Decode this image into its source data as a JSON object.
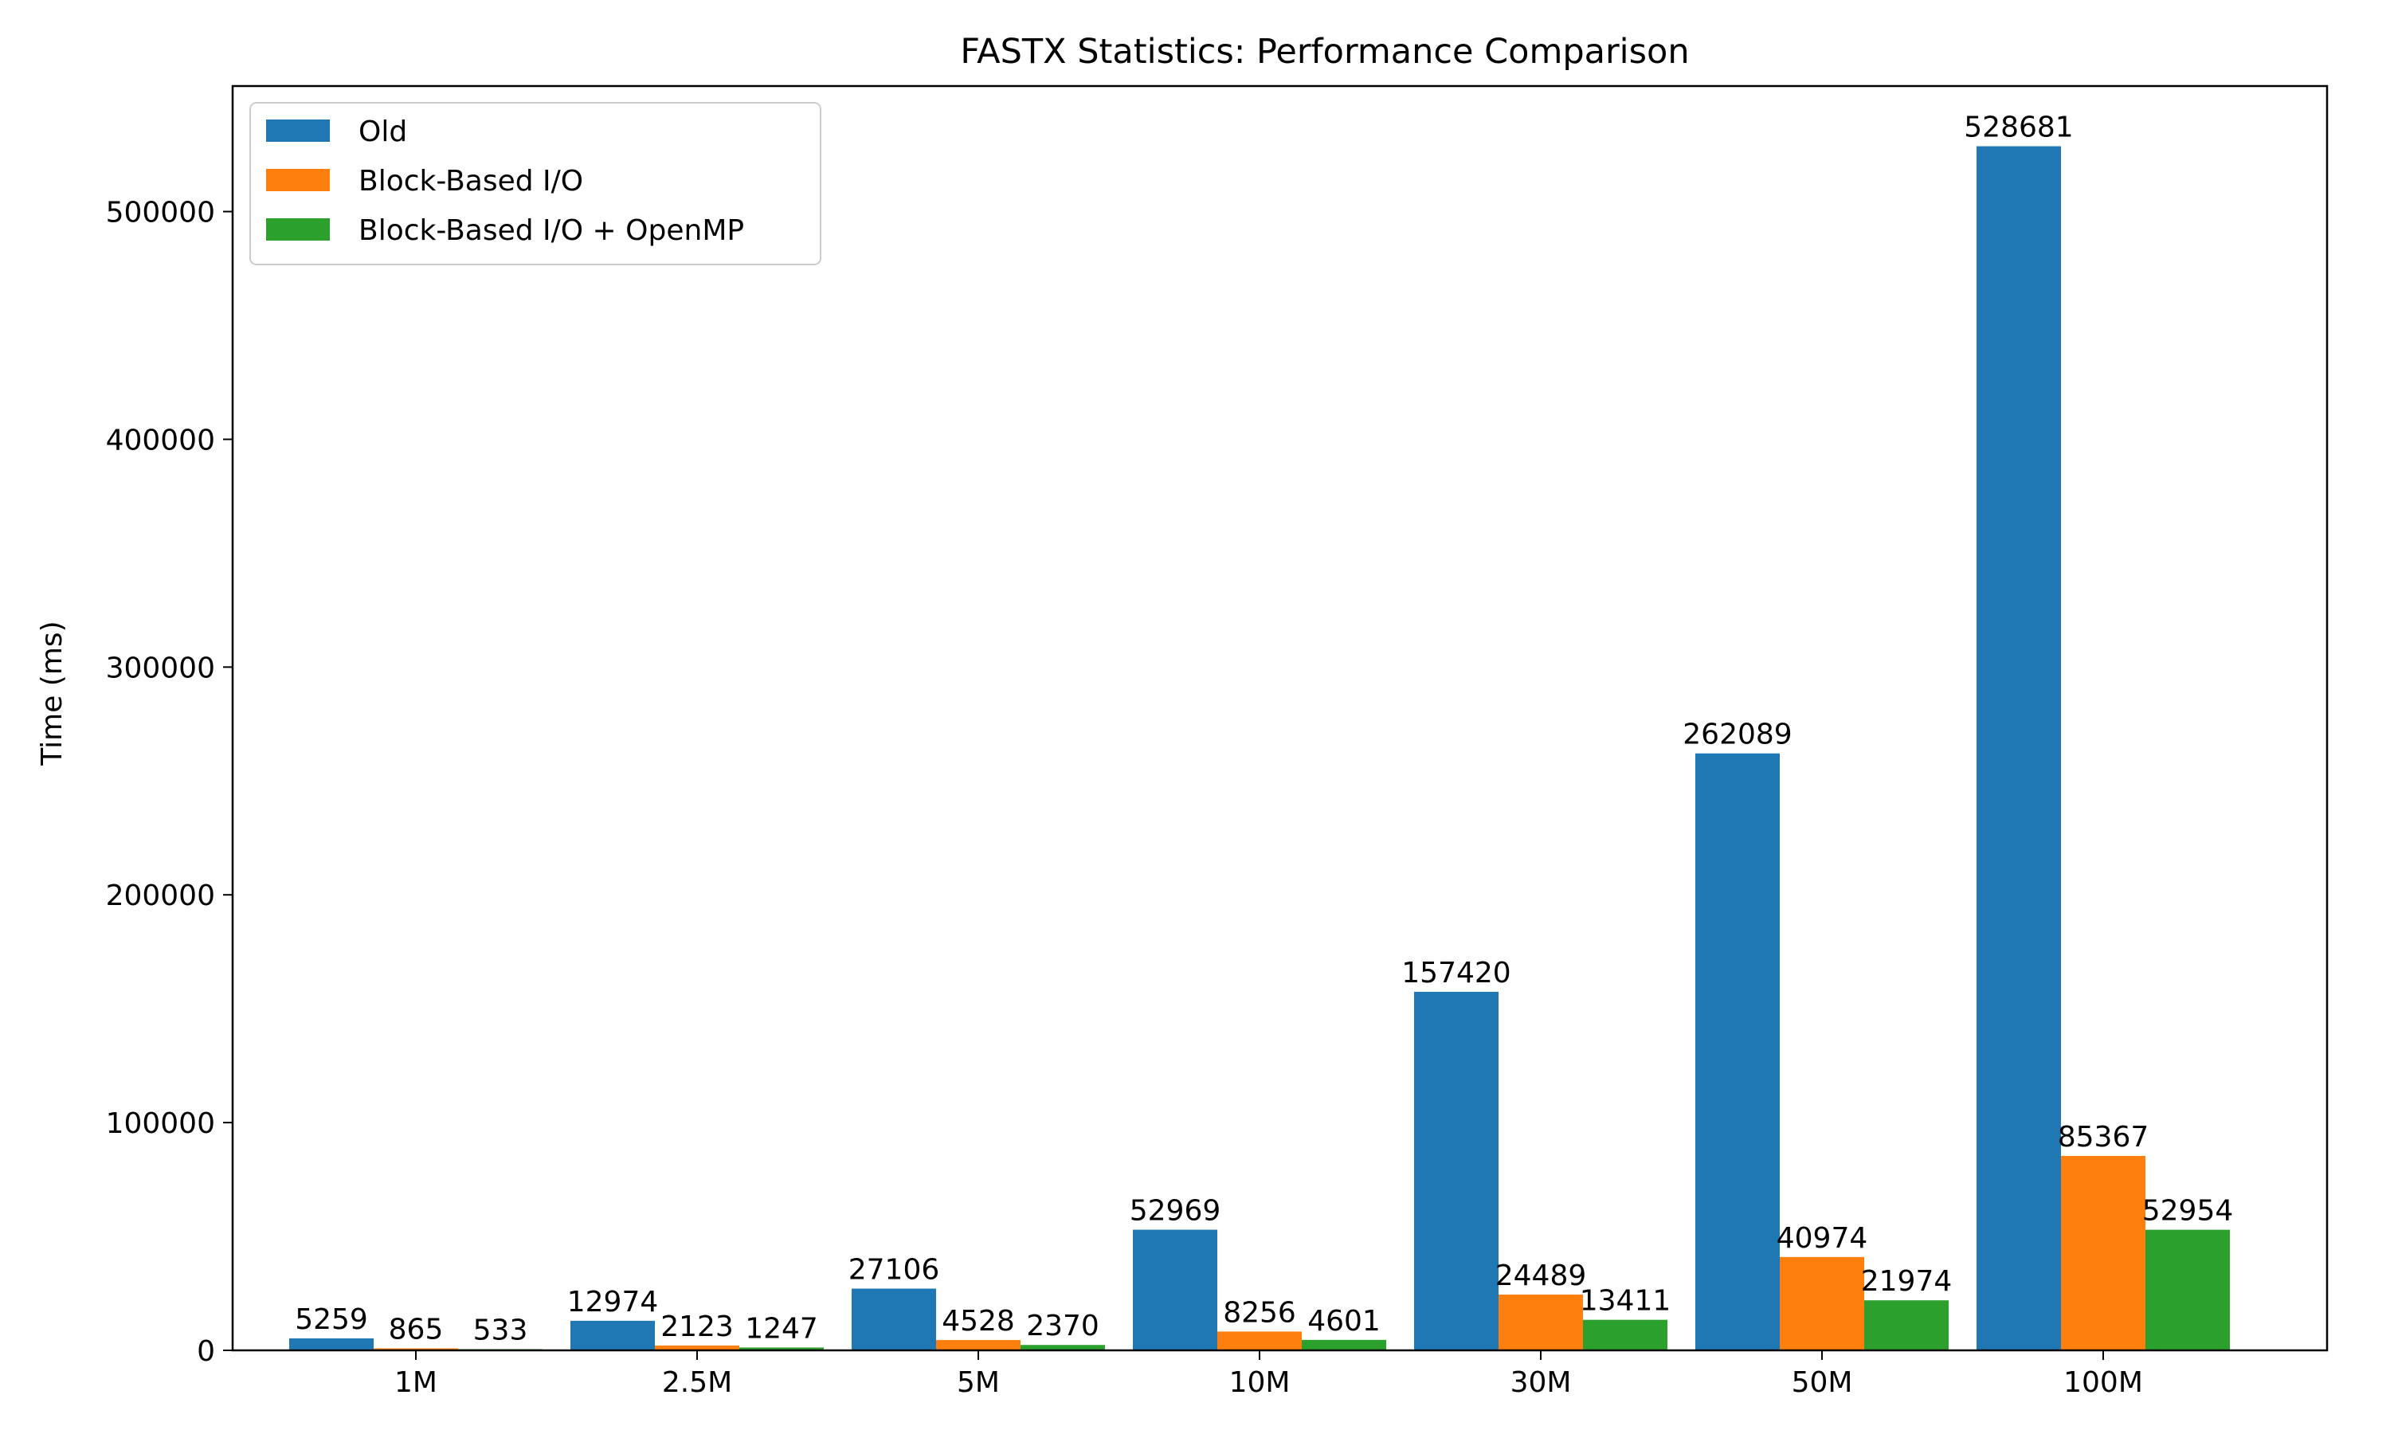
{
  "chart_data": {
    "type": "bar",
    "title": "FASTX Statistics: Performance Comparison",
    "xlabel": "",
    "ylabel": "Time (ms)",
    "categories": [
      "1M",
      "2.5M",
      "5M",
      "10M",
      "30M",
      "50M",
      "100M"
    ],
    "series": [
      {
        "name": "Old",
        "color": "#1f77b4",
        "values": [
          5259,
          12974,
          27106,
          52969,
          157420,
          262089,
          528681
        ]
      },
      {
        "name": "Block-Based I/O",
        "color": "#ff7f0e",
        "values": [
          865,
          2123,
          4528,
          8256,
          24489,
          40974,
          85367
        ]
      },
      {
        "name": "Block-Based I/O + OpenMP",
        "color": "#2ca02c",
        "values": [
          533,
          1247,
          2370,
          4601,
          13411,
          21974,
          52954
        ]
      }
    ],
    "ylim": [
      0,
      555115
    ],
    "yticks": [
      0,
      100000,
      200000,
      300000,
      400000,
      500000
    ],
    "ytick_labels": [
      "0",
      "100000",
      "200000",
      "300000",
      "400000",
      "500000"
    ],
    "legend_position": "top-left",
    "grid": false
  }
}
